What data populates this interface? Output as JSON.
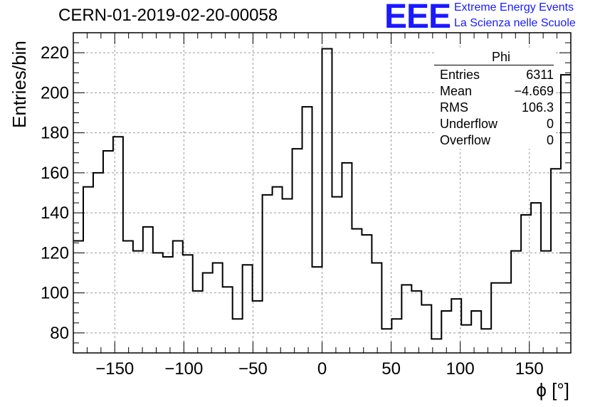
{
  "header": {
    "run_title": "CERN-01-2019-02-20-00058",
    "logo_text": "EEE",
    "logo_line1": "Extreme Energy Events",
    "logo_line2": "La Scienza nelle Scuole",
    "logo_color": "#1a1aff"
  },
  "stats_box": {
    "title": "Phi",
    "rows": [
      {
        "label": "Entries",
        "value": "6311"
      },
      {
        "label": "Mean",
        "value": "−4.669"
      },
      {
        "label": "RMS",
        "value": "106.3"
      },
      {
        "label": "Underflow",
        "value": "0"
      },
      {
        "label": "Overflow",
        "value": "0"
      }
    ]
  },
  "chart_data": {
    "type": "bar",
    "style": "histogram-step",
    "xlabel": "ϕ [°]",
    "ylabel": "Entries/bin",
    "xlim": [
      -180,
      180
    ],
    "ylim": [
      70,
      230
    ],
    "bin_width": 7.2,
    "x_ticks": [
      -150,
      -100,
      -50,
      0,
      50,
      100,
      150
    ],
    "x_tick_labels": [
      "−150",
      "−100",
      "−50",
      "0",
      "50",
      "100",
      "150"
    ],
    "y_ticks": [
      80,
      100,
      120,
      140,
      160,
      180,
      200,
      220
    ],
    "grid": true,
    "values": [
      126,
      153,
      160,
      171,
      178,
      126,
      121,
      133,
      120,
      118,
      126,
      119,
      101,
      110,
      115,
      103,
      87,
      114,
      96,
      149,
      153,
      147,
      172,
      193,
      113,
      222,
      148,
      165,
      132,
      129,
      115,
      82,
      87,
      104,
      101,
      94,
      77,
      91,
      97,
      84,
      91,
      82,
      105,
      105,
      121,
      139,
      145,
      121,
      162,
      209
    ]
  }
}
